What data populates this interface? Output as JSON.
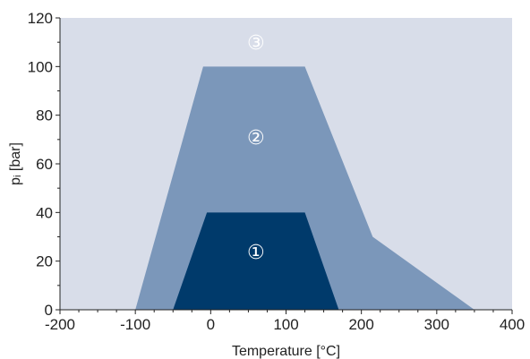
{
  "chart_data": {
    "type": "area",
    "xlabel": "Temperature [°C]",
    "ylabel": "pᵢ [bar]",
    "xlim": [
      -200,
      400
    ],
    "ylim": [
      0,
      120
    ],
    "xticks": [
      -200,
      -100,
      0,
      100,
      200,
      300,
      400
    ],
    "yticks": [
      0,
      20,
      40,
      60,
      80,
      100,
      120
    ],
    "grid": false,
    "background_color": "#d8dde9",
    "regions": [
      {
        "label": "③",
        "color": "#d8dde9",
        "label_position": [
          60,
          110
        ],
        "polygon": [
          [
            -200,
            0
          ],
          [
            400,
            0
          ],
          [
            400,
            120
          ],
          [
            -200,
            120
          ]
        ]
      },
      {
        "label": "②",
        "color": "#7b97ba",
        "label_position": [
          60,
          71
        ],
        "polygon": [
          [
            -100,
            0
          ],
          [
            -10,
            100
          ],
          [
            125,
            100
          ],
          [
            215,
            30
          ],
          [
            350,
            0
          ]
        ]
      },
      {
        "label": "①",
        "color": "#003a6b",
        "label_position": [
          60,
          24
        ],
        "polygon": [
          [
            -50,
            0
          ],
          [
            -5,
            40
          ],
          [
            125,
            40
          ],
          [
            170,
            0
          ]
        ]
      }
    ]
  }
}
